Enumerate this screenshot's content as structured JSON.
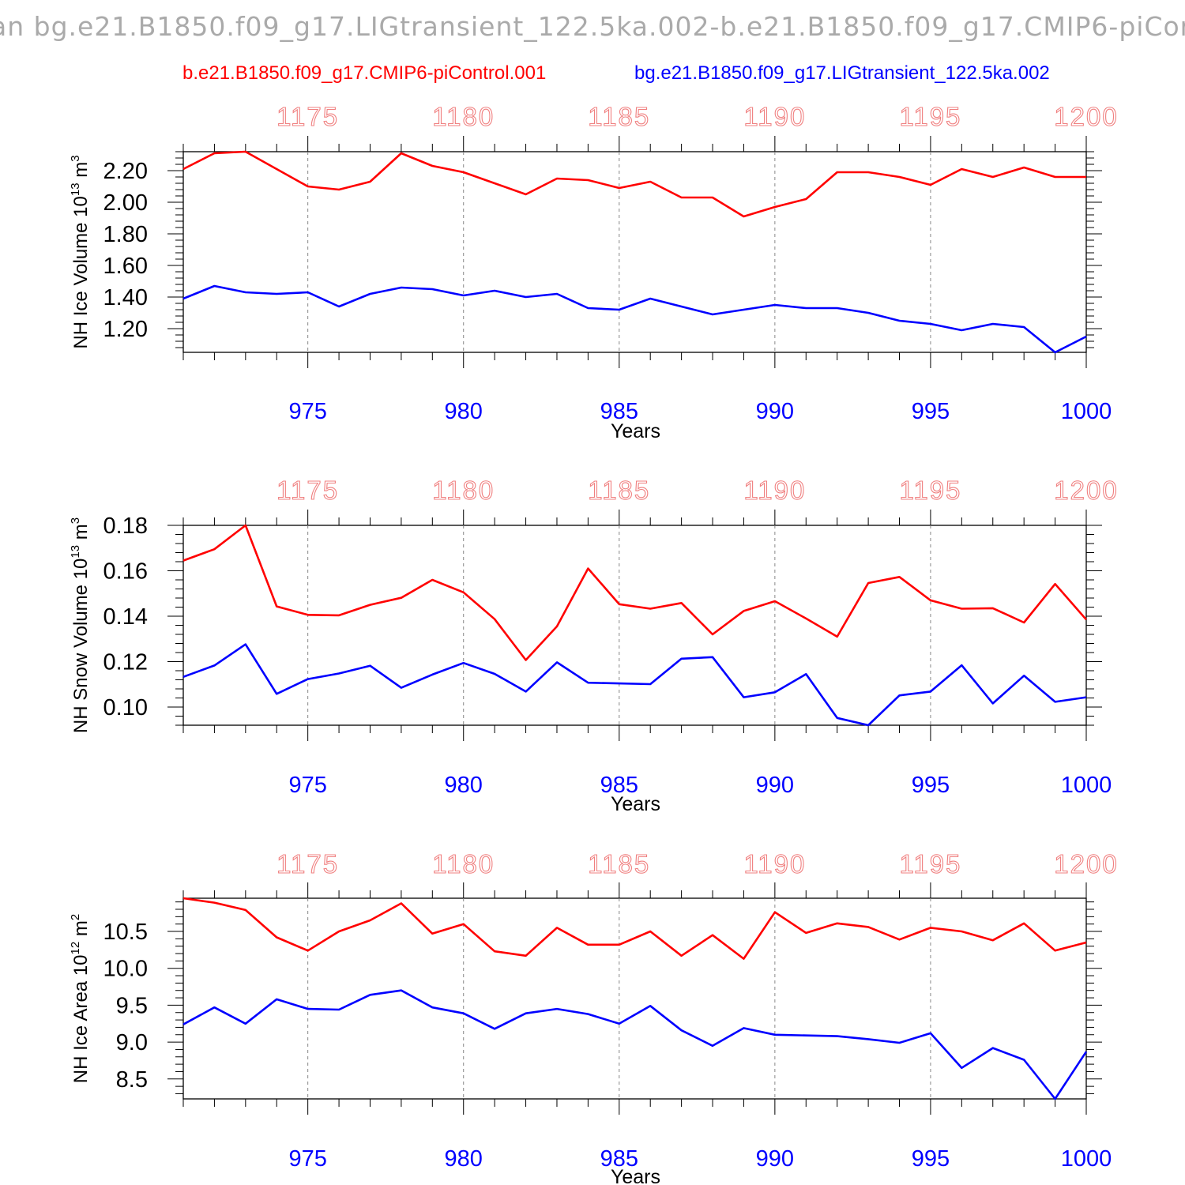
{
  "title": "an bg.e21.B1850.f09_g17.LIGtransient_122.5ka.002-b.e21.B1850.f09_g17.CMIP6-piCor",
  "legend": {
    "red": "b.e21.B1850.f09_g17.CMIP6-piControl.001",
    "blue": "bg.e21.B1850.f09_g17.LIGtransient_122.5ka.002"
  },
  "colors": {
    "red": "#ff0000",
    "blue": "#0000ff",
    "top_axis": "#f08080",
    "axis": "#000000",
    "grid": "#888888"
  },
  "chart_data": [
    {
      "type": "line",
      "ylabel": "NH Ice Volume 10^13 m^3",
      "xlabel": "Years",
      "xlim": [
        971,
        1000
      ],
      "ylim": [
        1.05,
        2.32
      ],
      "yticks": [
        "1.20",
        "1.40",
        "1.60",
        "1.80",
        "2.00",
        "2.20"
      ],
      "xticks": [
        "975",
        "980",
        "985",
        "990",
        "995",
        "1000"
      ],
      "top_xticks": [
        "1175",
        "1180",
        "1185",
        "1190",
        "1195",
        "1200"
      ],
      "grid": "dashed vertical at major x ticks",
      "x": [
        971,
        972,
        973,
        974,
        975,
        976,
        977,
        978,
        979,
        980,
        981,
        982,
        983,
        984,
        985,
        986,
        987,
        988,
        989,
        990,
        991,
        992,
        993,
        994,
        995,
        996,
        997,
        998,
        999,
        1000
      ],
      "series": [
        {
          "name": "b.e21.B1850.f09_g17.CMIP6-piControl.001",
          "color": "#ff0000",
          "values": [
            2.21,
            2.31,
            2.32,
            2.21,
            2.1,
            2.08,
            2.13,
            2.31,
            2.23,
            2.19,
            2.12,
            2.05,
            2.15,
            2.14,
            2.09,
            2.13,
            2.03,
            2.03,
            1.91,
            1.97,
            2.02,
            2.19,
            2.19,
            2.16,
            2.11,
            2.21,
            2.16,
            2.22,
            2.16,
            2.16
          ]
        },
        {
          "name": "bg.e21.B1850.f09_g17.LIGtransient_122.5ka.002",
          "color": "#0000ff",
          "values": [
            1.39,
            1.47,
            1.43,
            1.42,
            1.43,
            1.34,
            1.42,
            1.46,
            1.45,
            1.41,
            1.44,
            1.4,
            1.42,
            1.33,
            1.32,
            1.39,
            1.34,
            1.29,
            1.32,
            1.35,
            1.33,
            1.33,
            1.3,
            1.25,
            1.23,
            1.19,
            1.23,
            1.21,
            1.05,
            1.15
          ]
        }
      ]
    },
    {
      "type": "line",
      "ylabel": "NH Snow Volume 10^13 m^3",
      "xlabel": "Years",
      "xlim": [
        971,
        1000
      ],
      "ylim": [
        0.092,
        0.18
      ],
      "yticks": [
        "0.10",
        "0.12",
        "0.14",
        "0.16",
        "0.18"
      ],
      "xticks": [
        "975",
        "980",
        "985",
        "990",
        "995",
        "1000"
      ],
      "top_xticks": [
        "1175",
        "1180",
        "1185",
        "1190",
        "1195",
        "1200"
      ],
      "grid": "dashed vertical at major x ticks",
      "x": [
        971,
        972,
        973,
        974,
        975,
        976,
        977,
        978,
        979,
        980,
        981,
        982,
        983,
        984,
        985,
        986,
        987,
        988,
        989,
        990,
        991,
        992,
        993,
        994,
        995,
        996,
        997,
        998,
        999,
        1000
      ],
      "series": [
        {
          "name": "b.e21.B1850.f09_g17.CMIP6-piControl.001",
          "color": "#ff0000",
          "values": [
            0.1645,
            0.1695,
            0.18,
            0.1443,
            0.1406,
            0.1404,
            0.145,
            0.1481,
            0.156,
            0.1505,
            0.1387,
            0.1207,
            0.1355,
            0.161,
            0.1453,
            0.1433,
            0.1458,
            0.132,
            0.1423,
            0.1466,
            0.139,
            0.131,
            0.1546,
            0.1573,
            0.147,
            0.1433,
            0.1435,
            0.1372,
            0.1542,
            0.1385
          ]
        },
        {
          "name": "bg.e21.B1850.f09_g17.LIGtransient_122.5ka.002",
          "color": "#0000ff",
          "values": [
            0.1133,
            0.1183,
            0.1276,
            0.1058,
            0.1123,
            0.1148,
            0.1182,
            0.1085,
            0.1143,
            0.1194,
            0.1146,
            0.1068,
            0.1197,
            0.1107,
            0.1104,
            0.1101,
            0.1213,
            0.122,
            0.1043,
            0.1065,
            0.1145,
            0.0952,
            0.092,
            0.1051,
            0.1068,
            0.1184,
            0.1016,
            0.1138,
            0.1023,
            0.1043
          ]
        }
      ]
    },
    {
      "type": "line",
      "ylabel": "NH Ice Area 10^12 m^2",
      "xlabel": "Years",
      "xlim": [
        971,
        1000
      ],
      "ylim": [
        8.23,
        10.95
      ],
      "yticks": [
        "8.5",
        "9.0",
        "9.5",
        "10.0",
        "10.5"
      ],
      "xticks": [
        "975",
        "980",
        "985",
        "990",
        "995",
        "1000"
      ],
      "top_xticks": [
        "1175",
        "1180",
        "1185",
        "1190",
        "1195",
        "1200"
      ],
      "grid": "dashed vertical at major x ticks",
      "x": [
        971,
        972,
        973,
        974,
        975,
        976,
        977,
        978,
        979,
        980,
        981,
        982,
        983,
        984,
        985,
        986,
        987,
        988,
        989,
        990,
        991,
        992,
        993,
        994,
        995,
        996,
        997,
        998,
        999,
        1000
      ],
      "series": [
        {
          "name": "b.e21.B1850.f09_g17.CMIP6-piControl.001",
          "color": "#ff0000",
          "values": [
            10.95,
            10.89,
            10.79,
            10.42,
            10.24,
            10.5,
            10.65,
            10.88,
            10.47,
            10.6,
            10.23,
            10.17,
            10.55,
            10.32,
            10.32,
            10.5,
            10.17,
            10.45,
            10.13,
            10.76,
            10.48,
            10.61,
            10.56,
            10.39,
            10.55,
            10.5,
            10.38,
            10.61,
            10.24,
            10.35
          ]
        },
        {
          "name": "bg.e21.B1850.f09_g17.LIGtransient_122.5ka.002",
          "color": "#0000ff",
          "values": [
            9.24,
            9.47,
            9.25,
            9.58,
            9.45,
            9.44,
            9.64,
            9.7,
            9.47,
            9.39,
            9.18,
            9.39,
            9.45,
            9.38,
            9.25,
            9.49,
            9.16,
            8.95,
            9.19,
            9.1,
            9.09,
            9.08,
            9.04,
            8.99,
            9.12,
            8.65,
            8.92,
            8.76,
            8.23,
            8.87
          ]
        }
      ]
    }
  ]
}
